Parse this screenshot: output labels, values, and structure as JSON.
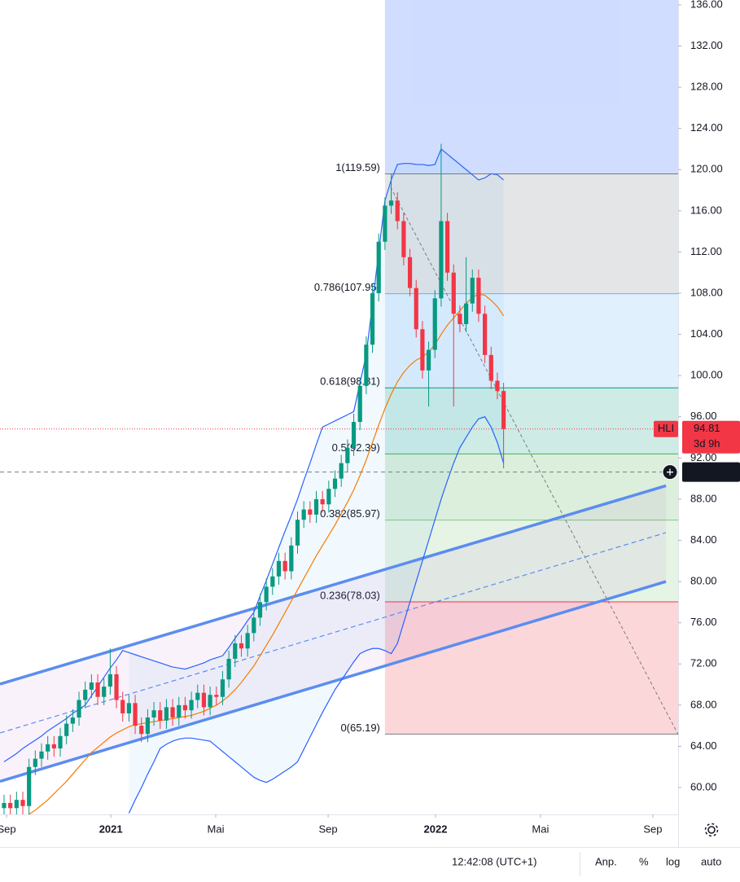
{
  "chart_data": {
    "type": "candlestick",
    "ticker": "HLI",
    "last_price": 94.81,
    "countdown": "3d 9h",
    "crosshair_price": {
      "value": 90.63,
      "label": "90.63"
    },
    "up_color": "#089981",
    "down_color": "#f23645",
    "xlim": [
      -0.65,
      107.95
    ],
    "ylim": [
      57.39,
      136.47
    ],
    "grid": false,
    "xticks": [
      {
        "value": 0.4,
        "label": "Sep"
      },
      {
        "value": 17.1,
        "label": "2021"
      },
      {
        "value": 33.9,
        "label": "Mai"
      },
      {
        "value": 51.9,
        "label": "Sep"
      },
      {
        "value": 69.1,
        "label": "2022"
      },
      {
        "value": 85.9,
        "label": "Mai"
      },
      {
        "value": 103.9,
        "label": "Sep"
      }
    ],
    "yticks": [
      {
        "value": 60,
        "label": "60.00"
      },
      {
        "value": 64,
        "label": "64.00"
      },
      {
        "value": 68,
        "label": "68.00"
      },
      {
        "value": 72,
        "label": "72.00"
      },
      {
        "value": 76,
        "label": "76.00"
      },
      {
        "value": 80,
        "label": "80.00"
      },
      {
        "value": 84,
        "label": "84.00"
      },
      {
        "value": 88,
        "label": "88.00"
      },
      {
        "value": 92,
        "label": "92.00"
      },
      {
        "value": 96,
        "label": "96.00"
      },
      {
        "value": 100,
        "label": "100.00"
      },
      {
        "value": 104,
        "label": "104.00"
      },
      {
        "value": 108,
        "label": "108.00"
      },
      {
        "value": 112,
        "label": "112.00"
      },
      {
        "value": 116,
        "label": "116.00"
      },
      {
        "value": 120,
        "label": "120.00"
      },
      {
        "value": 124,
        "label": "124.00"
      },
      {
        "value": 128,
        "label": "128.00"
      },
      {
        "value": 132,
        "label": "132.00"
      },
      {
        "value": 136,
        "label": "136.00"
      }
    ],
    "open": [
      58.0,
      58.5,
      58.0,
      58.8,
      58.2,
      62.0,
      62.8,
      63.5,
      64.2,
      63.8,
      65.0,
      66.2,
      66.8,
      68.5,
      69.5,
      70.2,
      68.8,
      69.8,
      71.0,
      68.5,
      67.2,
      68.2,
      66.0,
      65.2,
      66.8,
      67.5,
      66.5,
      67.8,
      66.8,
      68.0,
      67.5,
      68.5,
      69.2,
      67.8,
      69.0,
      68.8,
      70.5,
      72.5,
      74.0,
      73.5,
      75.0,
      76.5,
      78.0,
      79.5,
      80.5,
      82.0,
      81.0,
      83.5,
      86.0,
      87.0,
      86.5,
      88.0,
      87.5,
      89.0,
      90.0,
      91.5,
      93.0,
      95.5,
      99.0,
      103.0,
      108.0,
      113.0,
      116.5,
      117.0,
      115.0,
      111.5,
      108.5,
      104.5,
      100.5,
      102.5,
      107.5,
      115.0,
      110.0,
      106.0,
      105.0,
      107.0,
      109.5,
      106.0,
      102.0,
      99.5,
      98.5
    ],
    "high": [
      59.3,
      59.3,
      59.6,
      59.6,
      62.8,
      63.6,
      64.3,
      65.0,
      65.0,
      65.8,
      67.0,
      67.6,
      69.3,
      70.3,
      71.0,
      71.0,
      70.6,
      73.5,
      71.8,
      69.3,
      69.0,
      69.0,
      66.8,
      67.6,
      68.3,
      68.3,
      68.6,
      68.6,
      68.8,
      68.8,
      69.3,
      70.0,
      70.0,
      69.8,
      69.8,
      71.3,
      73.3,
      74.8,
      74.8,
      75.8,
      77.3,
      78.8,
      80.3,
      81.3,
      82.8,
      82.8,
      84.3,
      86.8,
      87.8,
      87.8,
      88.8,
      88.8,
      89.8,
      90.8,
      92.3,
      93.8,
      96.3,
      99.8,
      103.8,
      108.8,
      113.8,
      117.3,
      119.6,
      117.8,
      115.8,
      112.3,
      109.3,
      105.3,
      103.3,
      108.3,
      122.5,
      115.8,
      110.8,
      106.8,
      111.5,
      110.3,
      110.3,
      106.8,
      102.8,
      100.3,
      99.3
    ],
    "low": [
      57.2,
      57.2,
      57.2,
      57.4,
      57.4,
      61.2,
      62.0,
      62.7,
      63.0,
      63.0,
      64.2,
      65.4,
      66.0,
      67.7,
      68.7,
      68.0,
      68.0,
      69.0,
      67.7,
      66.4,
      66.4,
      65.2,
      64.4,
      64.4,
      66.0,
      65.7,
      65.7,
      66.0,
      66.0,
      66.7,
      66.7,
      67.7,
      67.0,
      67.0,
      68.0,
      68.0,
      69.7,
      71.7,
      72.7,
      72.7,
      74.2,
      75.7,
      77.2,
      78.7,
      79.7,
      80.2,
      80.2,
      82.7,
      85.2,
      85.7,
      85.7,
      86.7,
      86.7,
      88.2,
      89.2,
      90.7,
      92.2,
      94.7,
      98.2,
      102.2,
      107.2,
      112.2,
      115.7,
      114.2,
      110.7,
      107.7,
      103.7,
      99.7,
      97.0,
      101.7,
      106.7,
      109.2,
      97.0,
      104.2,
      104.2,
      106.2,
      105.2,
      101.2,
      98.7,
      97.7,
      91.0
    ],
    "close": [
      58.5,
      58.0,
      58.8,
      58.2,
      62.0,
      62.8,
      63.5,
      64.2,
      63.8,
      65.0,
      66.2,
      66.8,
      68.5,
      69.5,
      70.2,
      68.8,
      69.8,
      71.0,
      68.5,
      67.2,
      68.2,
      66.0,
      65.2,
      66.8,
      67.5,
      66.5,
      67.8,
      66.8,
      68.0,
      67.5,
      68.5,
      69.2,
      67.8,
      69.0,
      68.8,
      70.5,
      72.5,
      74.0,
      73.5,
      75.0,
      76.5,
      78.0,
      79.5,
      80.5,
      82.0,
      81.0,
      83.5,
      86.0,
      87.0,
      86.5,
      88.0,
      87.5,
      89.0,
      90.0,
      91.5,
      93.0,
      95.5,
      99.0,
      103.0,
      108.0,
      113.0,
      116.5,
      117.0,
      115.0,
      111.5,
      108.5,
      104.5,
      100.5,
      102.5,
      107.5,
      115.0,
      110.0,
      106.0,
      105.0,
      107.0,
      109.5,
      106.0,
      102.0,
      99.5,
      98.5,
      94.81
    ],
    "overlays": [
      {
        "color": "#f57c00",
        "values": [
          56.5,
          56.7,
          56.9,
          57.1,
          57.4,
          57.8,
          58.3,
          58.8,
          59.4,
          60.0,
          60.6,
          61.3,
          62.0,
          62.7,
          63.4,
          63.9,
          64.4,
          64.9,
          65.3,
          65.6,
          65.9,
          66.1,
          66.2,
          66.3,
          66.4,
          66.5,
          66.6,
          66.7,
          66.8,
          66.9,
          67.0,
          67.2,
          67.4,
          67.7,
          68.0,
          68.4,
          68.9,
          69.5,
          70.2,
          71.0,
          71.8,
          72.8,
          73.8,
          74.8,
          75.9,
          77.0,
          78.1,
          79.2,
          80.3,
          81.4,
          82.5,
          83.5,
          84.5,
          85.5,
          86.6,
          87.7,
          88.9,
          90.3,
          91.8,
          93.5,
          95.2,
          96.8,
          98.2,
          99.4,
          100.3,
          101.0,
          101.5,
          101.8,
          102.3,
          103.0,
          104.0,
          104.9,
          105.6,
          106.3,
          107.0,
          107.6,
          107.9,
          107.8,
          107.3,
          106.7,
          105.8
        ]
      },
      {
        "color": "#2962ff",
        "values": [
          62.5,
          62.9,
          63.3,
          63.8,
          64.2,
          64.6,
          65.0,
          65.5,
          65.9,
          66.3,
          66.7,
          67.2,
          67.6,
          68.0,
          68.9,
          69.8,
          70.7,
          71.6,
          72.4,
          73.3,
          73.1,
          72.9,
          72.7,
          72.5,
          72.3,
          72.1,
          71.9,
          71.7,
          71.6,
          71.5,
          71.7,
          71.9,
          72.1,
          72.4,
          72.6,
          72.8,
          73.6,
          74.5,
          75.3,
          76.2,
          77.0,
          78.6,
          80.1,
          81.7,
          83.3,
          84.9,
          86.4,
          88.0,
          89.8,
          91.5,
          93.3,
          95.0,
          95.3,
          95.6,
          95.9,
          96.2,
          96.5,
          99.3,
          102.0,
          107.0,
          112.0,
          117.0,
          119.0,
          120.5,
          120.6,
          120.6,
          120.5,
          120.5,
          120.4,
          120.5,
          122.0,
          121.5,
          121.0,
          120.5,
          120.0,
          119.5,
          119.0,
          119.2,
          119.6,
          119.5,
          119.0
        ]
      },
      {
        "color": "#2962ff",
        "values": [
          null,
          null,
          null,
          null,
          null,
          null,
          null,
          null,
          null,
          null,
          null,
          null,
          null,
          null,
          null,
          null,
          null,
          null,
          null,
          null,
          57.5,
          58.8,
          60.0,
          61.3,
          62.5,
          63.8,
          64.2,
          64.5,
          64.7,
          64.8,
          64.8,
          64.7,
          64.6,
          64.5,
          64.0,
          63.5,
          63.0,
          62.5,
          62.0,
          61.5,
          61.0,
          60.7,
          60.5,
          60.8,
          61.2,
          61.6,
          62.0,
          62.5,
          63.7,
          64.9,
          66.1,
          67.3,
          68.4,
          69.5,
          70.4,
          71.3,
          72.2,
          73.0,
          73.3,
          73.5,
          73.5,
          73.3,
          73.0,
          74.0,
          76.0,
          78.0,
          80.0,
          82.0,
          84.0,
          86.0,
          88.0,
          89.8,
          91.5,
          93.0,
          94.0,
          95.0,
          95.8,
          96.0,
          95.0,
          93.5,
          91.5
        ]
      }
    ],
    "channel": {
      "color": "#5b8def",
      "x": [
        -0.65,
        106.0
      ],
      "upper": [
        70.05,
        89.3
      ],
      "middle": [
        65.3,
        84.75
      ],
      "lower": [
        60.6,
        80.0
      ]
    },
    "trend_line": {
      "x": [
        61.9,
        108.0
      ],
      "y": [
        118.3,
        65.1
      ]
    },
    "fib": {
      "x": [
        61.0,
        107.95
      ],
      "levels": [
        {
          "value": 119.59,
          "label": "1(119.59)",
          "color": "#787b86"
        },
        {
          "value": 107.95,
          "label": "0.786(107.95)",
          "color": "#64b5f6"
        },
        {
          "value": 98.81,
          "label": "0.618(98.81)",
          "color": "#089981"
        },
        {
          "value": 92.39,
          "label": "0.5(92.39)",
          "color": "#4caf50"
        },
        {
          "value": 85.97,
          "label": "0.382(85.97)",
          "color": "#81c784"
        },
        {
          "value": 78.03,
          "label": "0.236(78.03)",
          "color": "#f23645"
        },
        {
          "value": 65.19,
          "label": "0(65.19)",
          "color": "#787b86"
        }
      ]
    }
  },
  "toolbar": {
    "time": "12:42:08 (UTC+1)",
    "buttons": [
      "Anp.",
      "%",
      "log",
      "auto"
    ]
  }
}
